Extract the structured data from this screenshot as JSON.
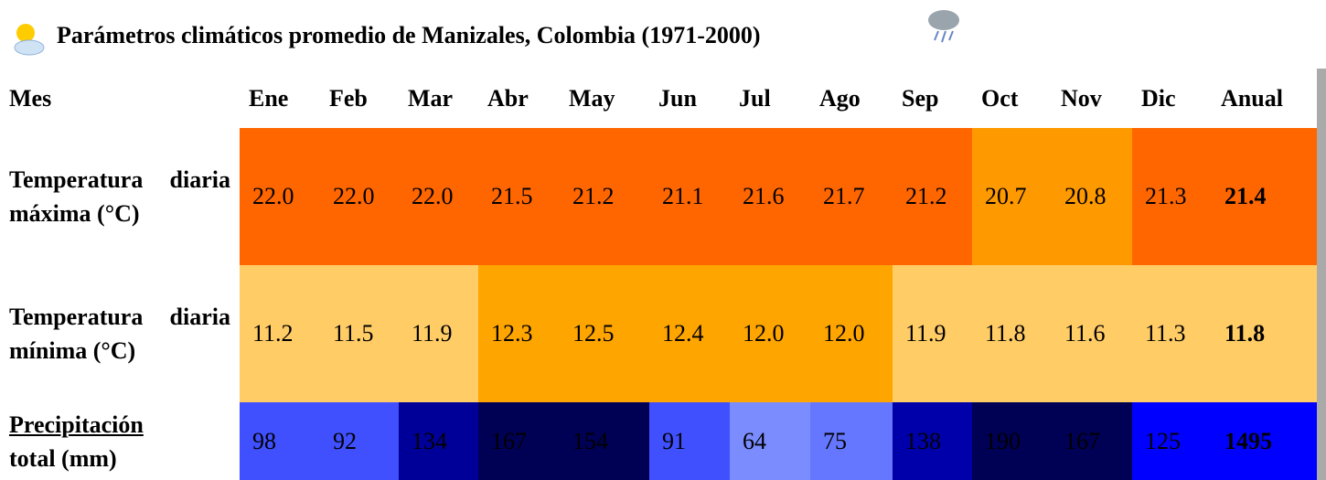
{
  "table": {
    "title": "Parámetros climáticos promedio de Manizales, Colombia (1971-2000)",
    "header": [
      "Mes",
      "Ene",
      "Feb",
      "Mar",
      "Abr",
      "May",
      "Jun",
      "Jul",
      "Ago",
      "Sep",
      "Oct",
      "Nov",
      "Dic",
      "Anual"
    ],
    "rows": [
      {
        "label": "Temperatura diaria máxima (°C)",
        "values": [
          "22.0",
          "22.0",
          "22.0",
          "21.5",
          "21.2",
          "21.1",
          "21.6",
          "21.7",
          "21.2",
          "20.7",
          "20.8",
          "21.3",
          "21.4"
        ],
        "colors": [
          "#ff6600",
          "#ff6600",
          "#ff6600",
          "#ff6600",
          "#ff6600",
          "#ff6600",
          "#ff6600",
          "#ff6600",
          "#ff6600",
          "#ff9900",
          "#ff9900",
          "#ff6600",
          "#ff6600"
        ]
      },
      {
        "label": "Temperatura diaria mínima (°C)",
        "values": [
          "11.2",
          "11.5",
          "11.9",
          "12.3",
          "12.5",
          "12.4",
          "12.0",
          "12.0",
          "11.9",
          "11.8",
          "11.6",
          "11.3",
          "11.8"
        ],
        "colors": [
          "#ffcc66",
          "#ffcc66",
          "#ffcc66",
          "#ffa500",
          "#ffa500",
          "#ffa500",
          "#ffa500",
          "#ffa500",
          "#ffcc66",
          "#ffcc66",
          "#ffcc66",
          "#ffcc66",
          "#ffcc66"
        ]
      },
      {
        "label_link": "Precipitación",
        "label": "total (mm)",
        "values": [
          "98",
          "92",
          "134",
          "167",
          "154",
          "91",
          "64",
          "75",
          "138",
          "190",
          "167",
          "125",
          "1495"
        ],
        "colors": [
          "#4050ff",
          "#4050ff",
          "#000099",
          "#000055",
          "#000055",
          "#4050ff",
          "#7b8cff",
          "#6677ff",
          "#0000aa",
          "#000055",
          "#000055",
          "#0000ff",
          "#0000ff"
        ]
      }
    ]
  }
}
